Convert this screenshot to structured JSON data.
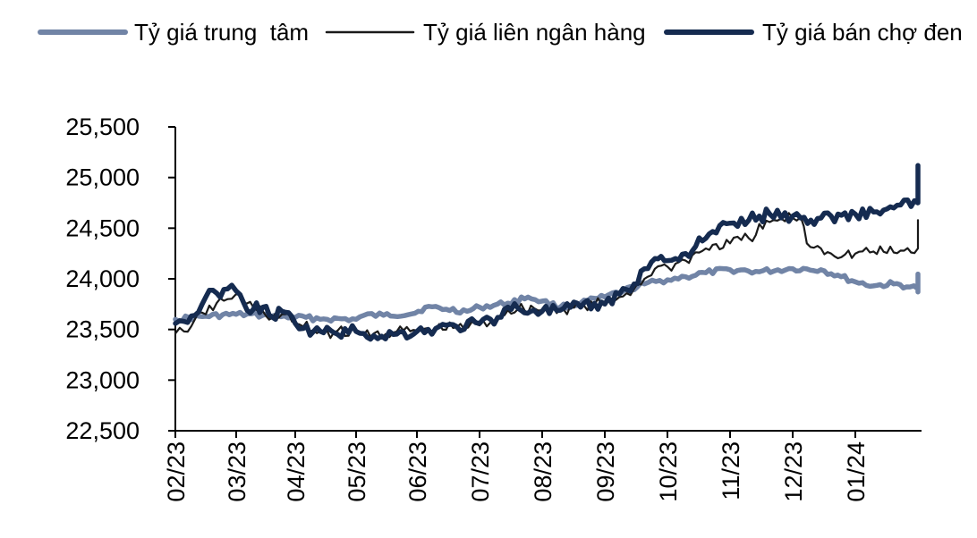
{
  "chart_data": {
    "type": "line",
    "title": "",
    "xlabel": "",
    "ylabel": "",
    "ylim": [
      22500,
      25500
    ],
    "yticks": [
      "22,500",
      "23,000",
      "23,500",
      "24,000",
      "24,500",
      "25,000",
      "25,500"
    ],
    "ytick_values": [
      22500,
      23000,
      23500,
      24000,
      24500,
      25000,
      25500
    ],
    "xticks": [
      "02/23",
      "03/23",
      "04/23",
      "05/23",
      "06/23",
      "07/23",
      "08/23",
      "09/23",
      "10/23",
      "11/23",
      "12/23",
      "01/24"
    ],
    "grid": false,
    "legend_position": "top",
    "series": [
      {
        "name": "Tỷ giá trung  tâm",
        "color": "#7184A6",
        "style": "thick",
        "values": [
          {
            "x": "2023-02-01",
            "y": 23600
          },
          {
            "x": "2023-02-15",
            "y": 23630
          },
          {
            "x": "2023-03-01",
            "y": 23650
          },
          {
            "x": "2023-03-15",
            "y": 23640
          },
          {
            "x": "2023-04-01",
            "y": 23620
          },
          {
            "x": "2023-04-15",
            "y": 23605
          },
          {
            "x": "2023-05-01",
            "y": 23600
          },
          {
            "x": "2023-05-05",
            "y": 23640
          },
          {
            "x": "2023-05-15",
            "y": 23640
          },
          {
            "x": "2023-05-31",
            "y": 23660
          },
          {
            "x": "2023-06-05",
            "y": 23720
          },
          {
            "x": "2023-06-15",
            "y": 23700
          },
          {
            "x": "2023-06-25",
            "y": 23680
          },
          {
            "x": "2023-07-01",
            "y": 23720
          },
          {
            "x": "2023-07-15",
            "y": 23760
          },
          {
            "x": "2023-07-25",
            "y": 23820
          },
          {
            "x": "2023-08-01",
            "y": 23780
          },
          {
            "x": "2023-08-10",
            "y": 23720
          },
          {
            "x": "2023-08-20",
            "y": 23760
          },
          {
            "x": "2023-09-01",
            "y": 23820
          },
          {
            "x": "2023-09-10",
            "y": 23880
          },
          {
            "x": "2023-09-20",
            "y": 23950
          },
          {
            "x": "2023-10-01",
            "y": 23990
          },
          {
            "x": "2023-10-10",
            "y": 24020
          },
          {
            "x": "2023-10-20",
            "y": 24060
          },
          {
            "x": "2023-11-01",
            "y": 24090
          },
          {
            "x": "2023-11-15",
            "y": 24070
          },
          {
            "x": "2023-12-01",
            "y": 24100
          },
          {
            "x": "2023-12-15",
            "y": 24090
          },
          {
            "x": "2023-12-25",
            "y": 24020
          },
          {
            "x": "2024-01-01",
            "y": 23970
          },
          {
            "x": "2024-01-10",
            "y": 23930
          },
          {
            "x": "2024-01-20",
            "y": 23950
          },
          {
            "x": "2024-01-28",
            "y": 23920
          },
          {
            "x": "2024-02-05",
            "y": 23900
          },
          {
            "x": "2024-02-10",
            "y": 23870
          },
          {
            "x": "2024-02-18",
            "y": 23930
          },
          {
            "x": "2024-02-25",
            "y": 23990
          },
          {
            "x": "2024-03-01",
            "y": 24030
          },
          {
            "x": "2024-03-10",
            "y": 24040
          },
          {
            "x": "2024-03-15",
            "y": 24040
          }
        ]
      },
      {
        "name": "Tỷ giá liên ngân hàng",
        "color": "#1A1A1A",
        "style": "thin",
        "values": [
          {
            "x": "2023-02-01",
            "y": 23460
          },
          {
            "x": "2023-02-05",
            "y": 23480
          },
          {
            "x": "2023-02-10",
            "y": 23600
          },
          {
            "x": "2023-02-15",
            "y": 23650
          },
          {
            "x": "2023-02-20",
            "y": 23760
          },
          {
            "x": "2023-02-25",
            "y": 23800
          },
          {
            "x": "2023-03-01",
            "y": 23850
          },
          {
            "x": "2023-03-05",
            "y": 23760
          },
          {
            "x": "2023-03-10",
            "y": 23720
          },
          {
            "x": "2023-03-15",
            "y": 23680
          },
          {
            "x": "2023-03-20",
            "y": 23620
          },
          {
            "x": "2023-03-25",
            "y": 23650
          },
          {
            "x": "2023-04-01",
            "y": 23560
          },
          {
            "x": "2023-04-05",
            "y": 23530
          },
          {
            "x": "2023-04-10",
            "y": 23490
          },
          {
            "x": "2023-04-20",
            "y": 23470
          },
          {
            "x": "2023-05-01",
            "y": 23480
          },
          {
            "x": "2023-05-05",
            "y": 23450
          },
          {
            "x": "2023-05-10",
            "y": 23460
          },
          {
            "x": "2023-05-20",
            "y": 23470
          },
          {
            "x": "2023-06-01",
            "y": 23490
          },
          {
            "x": "2023-06-10",
            "y": 23500
          },
          {
            "x": "2023-06-20",
            "y": 23520
          },
          {
            "x": "2023-07-01",
            "y": 23540
          },
          {
            "x": "2023-07-10",
            "y": 23600
          },
          {
            "x": "2023-07-15",
            "y": 23690
          },
          {
            "x": "2023-07-20",
            "y": 23700
          },
          {
            "x": "2023-07-28",
            "y": 23710
          },
          {
            "x": "2023-08-01",
            "y": 23690
          },
          {
            "x": "2023-08-10",
            "y": 23700
          },
          {
            "x": "2023-08-20",
            "y": 23720
          },
          {
            "x": "2023-09-01",
            "y": 23760
          },
          {
            "x": "2023-09-08",
            "y": 23820
          },
          {
            "x": "2023-09-15",
            "y": 23900
          },
          {
            "x": "2023-09-20",
            "y": 24000
          },
          {
            "x": "2023-09-25",
            "y": 24100
          },
          {
            "x": "2023-10-01",
            "y": 24120
          },
          {
            "x": "2023-10-05",
            "y": 24150
          },
          {
            "x": "2023-10-10",
            "y": 24180
          },
          {
            "x": "2023-10-20",
            "y": 24300
          },
          {
            "x": "2023-11-01",
            "y": 24350
          },
          {
            "x": "2023-11-10",
            "y": 24400
          },
          {
            "x": "2023-11-20",
            "y": 24560
          },
          {
            "x": "2023-12-01",
            "y": 24600
          },
          {
            "x": "2023-12-05",
            "y": 24610
          },
          {
            "x": "2023-12-08",
            "y": 24350
          },
          {
            "x": "2023-12-15",
            "y": 24300
          },
          {
            "x": "2023-12-20",
            "y": 24250
          },
          {
            "x": "2024-01-01",
            "y": 24250
          },
          {
            "x": "2024-01-10",
            "y": 24270
          },
          {
            "x": "2024-01-20",
            "y": 24260
          },
          {
            "x": "2024-02-01",
            "y": 24300
          },
          {
            "x": "2024-02-10",
            "y": 24320
          },
          {
            "x": "2024-02-20",
            "y": 24380
          },
          {
            "x": "2024-03-01",
            "y": 24500
          },
          {
            "x": "2024-03-10",
            "y": 24580
          },
          {
            "x": "2024-03-14",
            "y": 24420
          }
        ]
      },
      {
        "name": "Tỷ giá bán chợ đen",
        "color": "#152B50",
        "style": "thick",
        "values": [
          {
            "x": "2023-02-01",
            "y": 23560
          },
          {
            "x": "2023-02-05",
            "y": 23580
          },
          {
            "x": "2023-02-10",
            "y": 23640
          },
          {
            "x": "2023-02-15",
            "y": 23820
          },
          {
            "x": "2023-02-20",
            "y": 23860
          },
          {
            "x": "2023-02-25",
            "y": 23900
          },
          {
            "x": "2023-03-01",
            "y": 23880
          },
          {
            "x": "2023-03-05",
            "y": 23760
          },
          {
            "x": "2023-03-10",
            "y": 23700
          },
          {
            "x": "2023-03-15",
            "y": 23720
          },
          {
            "x": "2023-03-20",
            "y": 23620
          },
          {
            "x": "2023-03-25",
            "y": 23680
          },
          {
            "x": "2023-04-01",
            "y": 23560
          },
          {
            "x": "2023-04-05",
            "y": 23510
          },
          {
            "x": "2023-04-10",
            "y": 23480
          },
          {
            "x": "2023-04-20",
            "y": 23470
          },
          {
            "x": "2023-05-01",
            "y": 23480
          },
          {
            "x": "2023-05-05",
            "y": 23460
          },
          {
            "x": "2023-05-10",
            "y": 23440
          },
          {
            "x": "2023-05-20",
            "y": 23450
          },
          {
            "x": "2023-06-01",
            "y": 23480
          },
          {
            "x": "2023-06-10",
            "y": 23510
          },
          {
            "x": "2023-06-20",
            "y": 23530
          },
          {
            "x": "2023-07-01",
            "y": 23560
          },
          {
            "x": "2023-07-10",
            "y": 23620
          },
          {
            "x": "2023-07-15",
            "y": 23720
          },
          {
            "x": "2023-07-20",
            "y": 23710
          },
          {
            "x": "2023-07-28",
            "y": 23690
          },
          {
            "x": "2023-08-01",
            "y": 23680
          },
          {
            "x": "2023-08-10",
            "y": 23690
          },
          {
            "x": "2023-08-20",
            "y": 23720
          },
          {
            "x": "2023-09-01",
            "y": 23750
          },
          {
            "x": "2023-09-08",
            "y": 23850
          },
          {
            "x": "2023-09-15",
            "y": 23950
          },
          {
            "x": "2023-09-20",
            "y": 24100
          },
          {
            "x": "2023-09-25",
            "y": 24200
          },
          {
            "x": "2023-10-01",
            "y": 24180
          },
          {
            "x": "2023-10-05",
            "y": 24200
          },
          {
            "x": "2023-10-10",
            "y": 24250
          },
          {
            "x": "2023-10-20",
            "y": 24400
          },
          {
            "x": "2023-11-01",
            "y": 24550
          },
          {
            "x": "2023-11-10",
            "y": 24580
          },
          {
            "x": "2023-11-20",
            "y": 24640
          },
          {
            "x": "2023-12-01",
            "y": 24620
          },
          {
            "x": "2023-12-05",
            "y": 24600
          },
          {
            "x": "2023-12-10",
            "y": 24580
          },
          {
            "x": "2023-12-15",
            "y": 24600
          },
          {
            "x": "2023-12-20",
            "y": 24620
          },
          {
            "x": "2024-01-01",
            "y": 24640
          },
          {
            "x": "2024-01-10",
            "y": 24660
          },
          {
            "x": "2024-01-20",
            "y": 24700
          },
          {
            "x": "2024-02-01",
            "y": 24750
          },
          {
            "x": "2024-02-10",
            "y": 24800
          },
          {
            "x": "2024-02-20",
            "y": 24880
          },
          {
            "x": "2024-03-01",
            "y": 25000
          },
          {
            "x": "2024-03-08",
            "y": 25120
          },
          {
            "x": "2024-03-14",
            "y": 24990
          }
        ]
      }
    ]
  }
}
